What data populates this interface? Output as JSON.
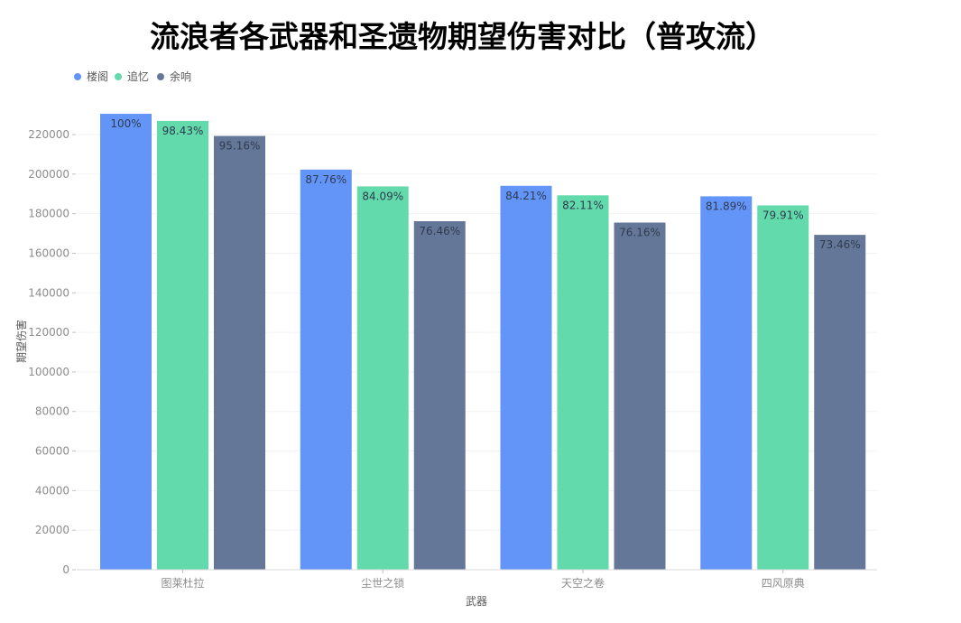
{
  "chart_data": {
    "type": "bar",
    "title": "流浪者各武器和圣遗物期望伤害对比（普攻流）",
    "xlabel": "武器",
    "ylabel": "期望伤害",
    "categories": [
      "图莱杜拉",
      "尘世之锁",
      "天空之卷",
      "四风原典"
    ],
    "series": [
      {
        "name": "楼阁",
        "color": "#6395f9",
        "values": [
          230500,
          202300,
          194100,
          188800
        ],
        "labels": [
          "100%",
          "87.76%",
          "84.21%",
          "81.89%"
        ]
      },
      {
        "name": "追忆",
        "color": "#62daab",
        "values": [
          226900,
          193800,
          189300,
          184200
        ],
        "labels": [
          "98.43%",
          "84.09%",
          "82.11%",
          "79.91%"
        ]
      },
      {
        "name": "余响",
        "color": "#657798",
        "values": [
          219300,
          176200,
          175500,
          169300
        ],
        "labels": [
          "95.16%",
          "76.46%",
          "76.16%",
          "73.46%"
        ]
      }
    ],
    "yticks": [
      0,
      20000,
      40000,
      60000,
      80000,
      100000,
      120000,
      140000,
      160000,
      180000,
      200000,
      220000
    ],
    "ylim": [
      0,
      236000
    ],
    "grid": true,
    "legend": "top-left"
  }
}
